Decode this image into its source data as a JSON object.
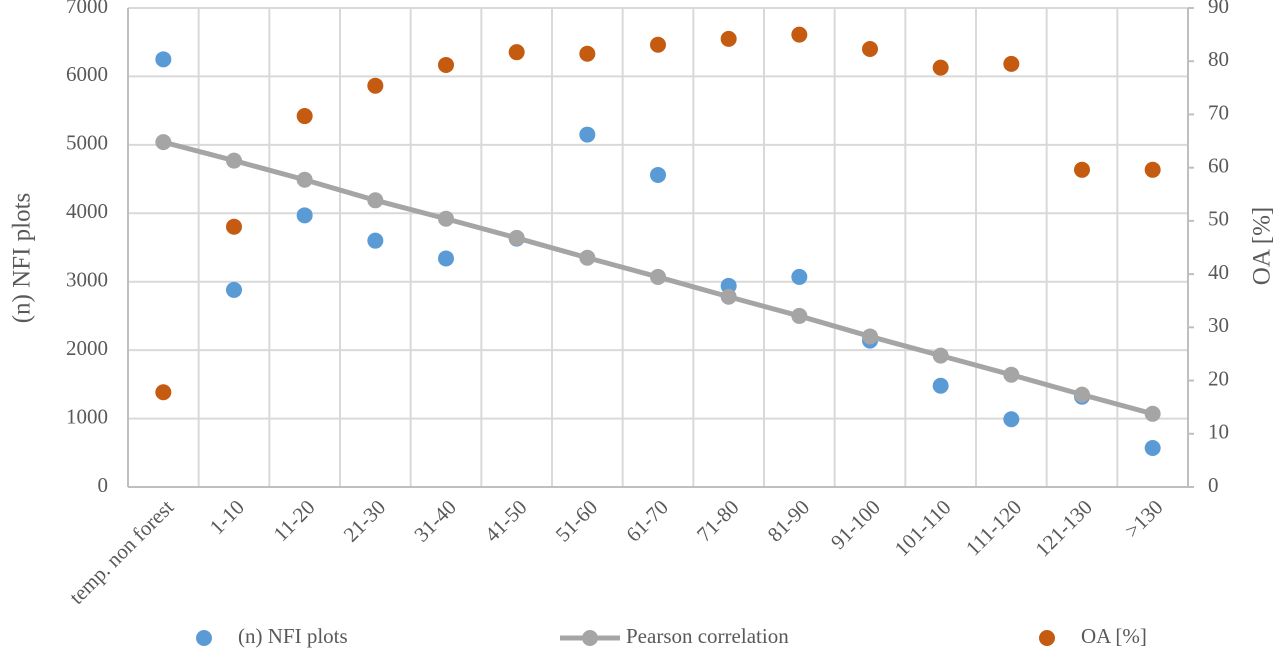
{
  "chart_data": {
    "type": "combo",
    "categories": [
      "temp. non forest",
      "1-10",
      "11-20",
      "21-30",
      "31-40",
      "41-50",
      "51-60",
      "61-70",
      "71-80",
      "81-90",
      "91-100",
      "101-110",
      "111-120",
      "121-130",
      ">130"
    ],
    "y_label": "(n) NFI plots",
    "y2_label": "OA [%]",
    "ylim": [
      0,
      7000
    ],
    "yticks": [
      0,
      1000,
      2000,
      3000,
      4000,
      5000,
      6000,
      7000
    ],
    "y2lim": [
      0,
      90
    ],
    "y2ticks": [
      0,
      10,
      20,
      30,
      40,
      50,
      60,
      70,
      80,
      90
    ],
    "grid": true,
    "series": [
      {
        "name": "(n) NFI plots",
        "type": "scatter",
        "color": "#5b9bd5",
        "values": [
          6250,
          2880,
          3970,
          3600,
          3340,
          3630,
          5150,
          4560,
          2940,
          3070,
          2140,
          1480,
          990,
          1320,
          570
        ]
      },
      {
        "name": "Pearson correlation",
        "type": "line",
        "color": "#a5a5a5",
        "values": [
          5040,
          4770,
          4490,
          4190,
          3920,
          3640,
          3350,
          3070,
          2780,
          2500,
          2200,
          1920,
          1640,
          1350,
          1070
        ]
      },
      {
        "name": "OA [%]",
        "type": "scatter",
        "axis": "y2",
        "color": "#c55a11",
        "values": [
          17.8,
          48.9,
          69.7,
          75.4,
          79.3,
          81.7,
          81.4,
          83.1,
          84.2,
          85.0,
          82.3,
          78.8,
          79.5,
          59.6,
          59.6
        ]
      }
    ]
  }
}
